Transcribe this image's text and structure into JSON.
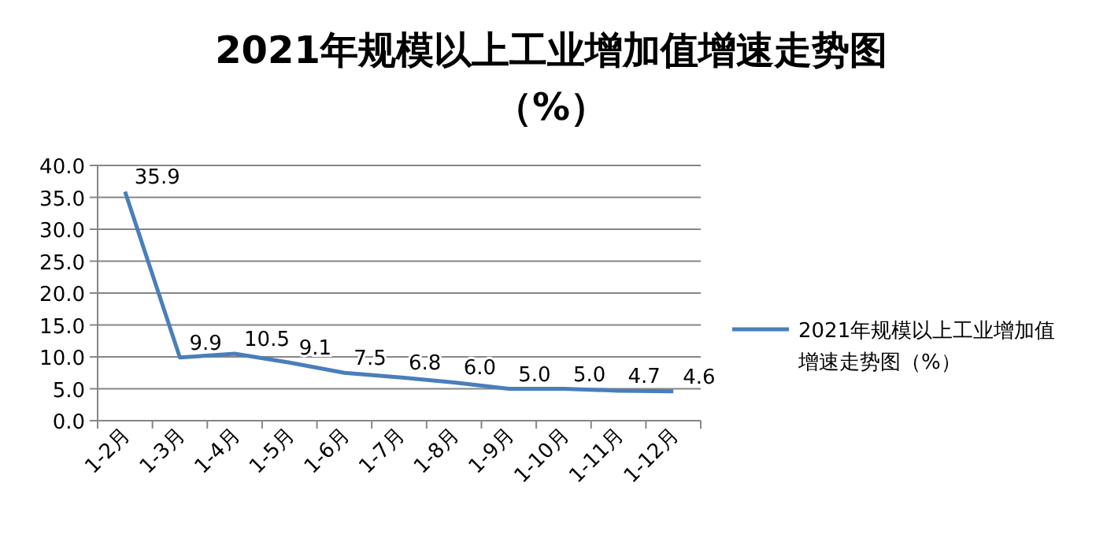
{
  "chart_data": {
    "type": "line",
    "title": "2021年规模以上工业增加值增速走势图（%）",
    "categories": [
      "1-2月",
      "1-3月",
      "1-4月",
      "1-5月",
      "1-6月",
      "1-7月",
      "1-8月",
      "1-9月",
      "1-10月",
      "1-11月",
      "1-12月"
    ],
    "series": [
      {
        "name": "2021年规模以上工业增加值增速走势图（%）",
        "color": "#4a7ebb",
        "values": [
          35.9,
          9.9,
          10.5,
          9.1,
          7.5,
          6.8,
          6.0,
          5.0,
          5.0,
          4.7,
          4.6
        ],
        "value_labels": [
          "35.9",
          "9.9",
          "10.5",
          "9.1",
          "7.5",
          "6.8",
          "6.0",
          "5.0",
          "5.0",
          "4.7",
          "4.6"
        ]
      }
    ],
    "ylim": [
      0,
      40
    ],
    "yticks": [
      {
        "value": 0,
        "label": "0.0"
      },
      {
        "value": 5,
        "label": "5.0"
      },
      {
        "value": 10,
        "label": "10.0"
      },
      {
        "value": 15,
        "label": "15.0"
      },
      {
        "value": 20,
        "label": "20.0"
      },
      {
        "value": 25,
        "label": "25.0"
      },
      {
        "value": 30,
        "label": "30.0"
      },
      {
        "value": 35,
        "label": "35.0"
      },
      {
        "value": 40,
        "label": "40.0"
      }
    ],
    "grid": "y",
    "legend": "right",
    "marker": "none",
    "line_style": "solid"
  }
}
